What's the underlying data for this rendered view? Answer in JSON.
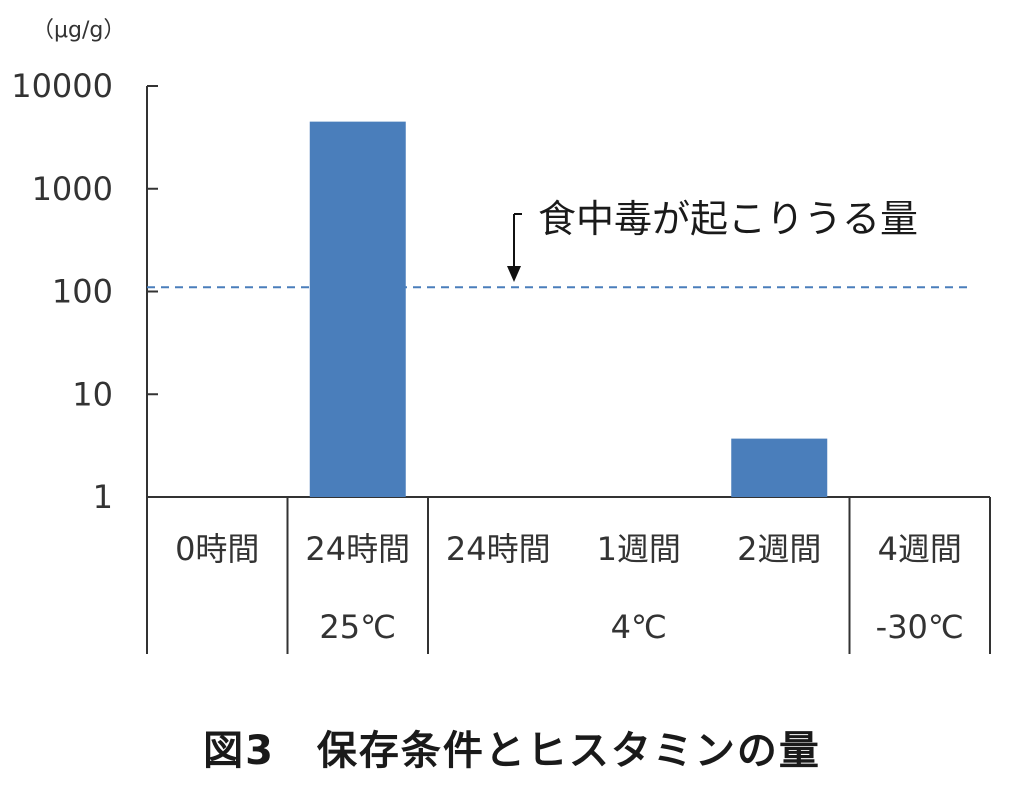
{
  "caption": "図3　保存条件とヒスタミンの量",
  "chart_data": {
    "type": "bar",
    "scale": "log",
    "unit_label": "（μg/g）",
    "ylim": [
      1,
      10000
    ],
    "y_ticks": [
      "10000",
      "1000",
      "100",
      "10",
      "1"
    ],
    "categories": [
      "0時間",
      "24時間",
      "24時間",
      "1週間",
      "2週間",
      "4週間"
    ],
    "groups": [
      {
        "label": "",
        "members": [
          0
        ]
      },
      {
        "label": "25℃",
        "members": [
          1
        ]
      },
      {
        "label": "4℃",
        "members": [
          2,
          3,
          4
        ]
      },
      {
        "label": "-30℃",
        "members": [
          5
        ]
      }
    ],
    "values": [
      1,
      4500,
      1,
      1,
      3.7,
      1
    ],
    "bar_color": "#4a7ebb",
    "reference_line": {
      "value": 110,
      "label": "食中毒が起こりうる量",
      "color": "#4a7ebb",
      "style": "dashed"
    }
  }
}
